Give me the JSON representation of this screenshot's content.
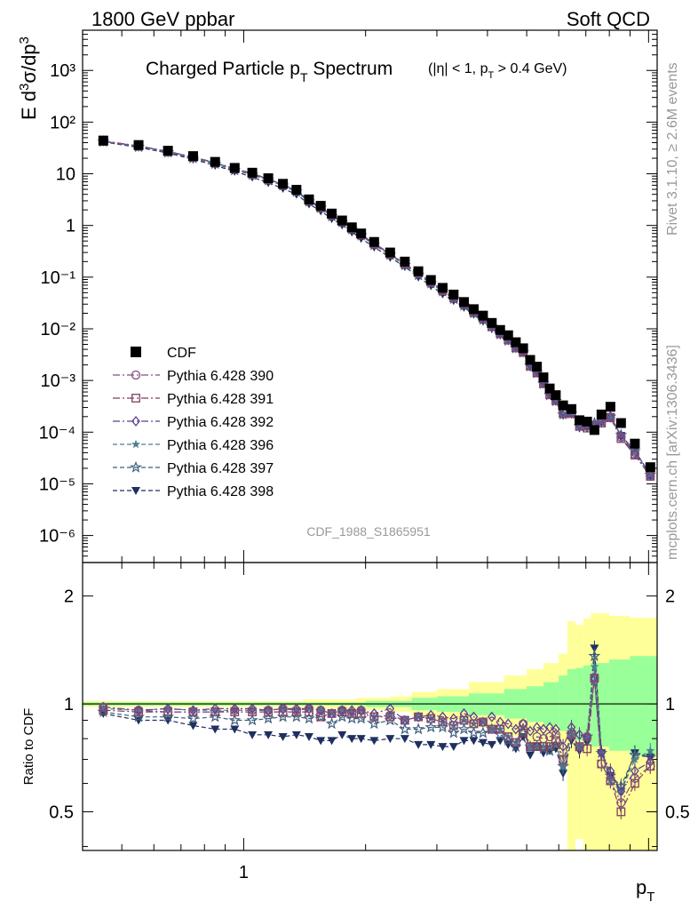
{
  "header": {
    "energy_label": "1800 GeV ppbar",
    "process_label": "Soft QCD",
    "title_main": "Charged Particle p",
    "title_main_sub": "T",
    "title_main_tail": " Spectrum",
    "title_cuts_a": "(|η| < 1, p",
    "title_cuts_sub": "T",
    "title_cuts_b": " > 0.4 GeV)",
    "analysis_id": "CDF_1988_S1865951",
    "side_rivet": "Rivet 3.1.10, ≥ 2.6M events",
    "side_site": "mcplots.cern.ch [arXiv:1306.3436]"
  },
  "colors": {
    "cdf": "#000000",
    "p390": "#7f4f7f",
    "p391": "#7f3f5f",
    "p392": "#5f3f8f",
    "p396": "#4f7f8f",
    "p397": "#3f5f7f",
    "p398": "#1f2f5f",
    "band_inner": "#99ff99",
    "band_outer": "#ffff99"
  },
  "chart_data": [
    {
      "type": "scatter",
      "ylabel": "E d³σ/dp³",
      "yscale": "log",
      "xscale": "log",
      "xlim": [
        0.4,
        10.5
      ],
      "ylim": [
        3e-07,
        6000
      ],
      "y_tick_labels": [
        "10⁻⁶",
        "10⁻⁵",
        "10⁻⁴",
        "10⁻³",
        "10⁻²",
        "10⁻¹",
        "1",
        "10",
        "10²",
        "10³"
      ],
      "x": [
        0.45,
        0.55,
        0.65,
        0.75,
        0.85,
        0.95,
        1.05,
        1.15,
        1.25,
        1.35,
        1.45,
        1.55,
        1.65,
        1.75,
        1.85,
        1.95,
        2.1,
        2.3,
        2.5,
        2.7,
        2.9,
        3.1,
        3.3,
        3.5,
        3.7,
        3.9,
        4.1,
        4.3,
        4.5,
        4.7,
        4.9,
        5.1,
        5.3,
        5.5,
        5.7,
        5.9,
        6.15,
        6.45,
        6.75,
        7.05,
        7.35,
        7.65,
        8.05,
        8.55,
        9.25,
        10.1
      ],
      "legend": [
        "CDF",
        "Pythia 6.428 390",
        "Pythia 6.428 391",
        "Pythia 6.428 392",
        "Pythia 6.428 396",
        "Pythia 6.428 397",
        "Pythia 6.428 398"
      ],
      "series": [
        {
          "name": "CDF",
          "values": [
            44,
            36,
            28,
            22,
            17,
            13,
            10.5,
            8.2,
            6.4,
            4.9,
            3.2,
            2.4,
            1.7,
            1.25,
            0.92,
            0.7,
            0.48,
            0.3,
            0.2,
            0.13,
            0.088,
            0.062,
            0.046,
            0.033,
            0.024,
            0.018,
            0.013,
            0.0095,
            0.0075,
            0.0055,
            0.0042,
            0.0025,
            0.00185,
            0.00115,
            0.0007,
            0.00052,
            0.00033,
            0.00028,
            0.00017,
            0.00016,
            0.00011,
            0.00022,
            0.00031,
            0.00015,
            6e-05,
            2.1e-05
          ]
        },
        {
          "name": "Pythia 6.428 390",
          "values": [
            43.1,
            34.6,
            26.6,
            20.9,
            16.2,
            12.5,
            10.1,
            7.9,
            6.2,
            4.7,
            3.1,
            2.3,
            1.6,
            1.2,
            0.87,
            0.67,
            0.44,
            0.28,
            0.18,
            0.12,
            0.08,
            0.055,
            0.04,
            0.03,
            0.021,
            0.016,
            0.011,
            0.0081,
            0.0061,
            0.0043,
            0.0037,
            0.0019,
            0.0015,
            0.00092,
            0.00057,
            0.00043,
            0.00023,
            0.00023,
            0.00013,
            0.00013,
            0.00013,
            0.00015,
            0.00019,
            8e-05,
            3.7e-05,
            1.4e-05
          ]
        },
        {
          "name": "Pythia 6.428 391",
          "values": [
            42.2,
            34.2,
            26.6,
            20.9,
            16.2,
            12.4,
            10.0,
            7.8,
            6.1,
            4.7,
            3.0,
            2.2,
            1.6,
            1.2,
            0.87,
            0.66,
            0.44,
            0.28,
            0.18,
            0.12,
            0.08,
            0.055,
            0.04,
            0.03,
            0.021,
            0.016,
            0.011,
            0.0081,
            0.0061,
            0.0043,
            0.0035,
            0.0019,
            0.0014,
            0.00087,
            0.00053,
            0.00041,
            0.00023,
            0.00023,
            0.00013,
            0.00012,
            0.00013,
            0.00015,
            0.00019,
            7.5e-05,
            3.6e-05,
            1.4e-05
          ]
        },
        {
          "name": "Pythia 6.428 392",
          "values": [
            43.1,
            34.6,
            27.2,
            21.1,
            16.5,
            12.6,
            10.2,
            7.9,
            6.2,
            4.8,
            3.1,
            2.3,
            1.6,
            1.2,
            0.88,
            0.67,
            0.45,
            0.29,
            0.18,
            0.12,
            0.082,
            0.057,
            0.042,
            0.031,
            0.022,
            0.016,
            0.012,
            0.0085,
            0.0066,
            0.0047,
            0.0037,
            0.0021,
            0.0016,
            0.00098,
            0.0006,
            0.00044,
            0.00025,
            0.00024,
            0.00014,
            0.00013,
            0.00013,
            0.00016,
            0.0002,
            8.5e-05,
            3.9e-05,
            1.45e-05
          ]
        },
        {
          "name": "Pythia 6.428 396",
          "values": [
            42.7,
            34.6,
            27.2,
            21.1,
            16.3,
            12.5,
            10.1,
            7.9,
            6.2,
            4.7,
            3.1,
            2.3,
            1.6,
            1.2,
            0.87,
            0.67,
            0.44,
            0.28,
            0.18,
            0.12,
            0.08,
            0.055,
            0.04,
            0.03,
            0.021,
            0.016,
            0.011,
            0.0081,
            0.0061,
            0.0043,
            0.0036,
            0.0019,
            0.0014,
            0.00087,
            0.00053,
            0.0004,
            0.00022,
            0.00023,
            0.00013,
            0.00013,
            0.00014,
            0.00016,
            0.00019,
            8.5e-05,
            4.2e-05,
            1.55e-05
          ]
        },
        {
          "name": "Pythia 6.428 397",
          "values": [
            41.8,
            33.1,
            25.8,
            20.0,
            15.6,
            11.7,
            9.5,
            7.5,
            5.9,
            4.5,
            2.9,
            2.2,
            1.5,
            1.15,
            0.84,
            0.64,
            0.42,
            0.27,
            0.17,
            0.11,
            0.076,
            0.053,
            0.038,
            0.028,
            0.02,
            0.015,
            0.011,
            0.0078,
            0.0059,
            0.0042,
            0.0035,
            0.0019,
            0.0014,
            0.00086,
            0.00052,
            0.0004,
            0.00022,
            0.00023,
            0.00013,
            0.00013,
            0.00015,
            0.00016,
            0.0002,
            8.8e-05,
            4.3e-05,
            1.5e-05
          ]
        },
        {
          "name": "Pythia 6.428 398",
          "values": [
            41.4,
            32.4,
            25.2,
            19.1,
            14.5,
            11.1,
            8.6,
            6.7,
            5.2,
            4.0,
            2.6,
            1.9,
            1.35,
            1.02,
            0.74,
            0.56,
            0.38,
            0.24,
            0.16,
            0.1,
            0.068,
            0.047,
            0.035,
            0.026,
            0.019,
            0.014,
            0.01,
            0.0075,
            0.0058,
            0.0041,
            0.0034,
            0.0018,
            0.0014,
            0.00084,
            0.00052,
            0.00039,
            0.00021,
            0.00022,
            0.00012,
            0.00012,
            0.00014,
            0.00016,
            0.0002,
            8.6e-05,
            4.4e-05,
            1.5e-05
          ]
        }
      ]
    },
    {
      "type": "line",
      "ylabel": "Ratio to CDF",
      "xlabel": "p",
      "xlabel_sub": "T",
      "xscale": "log",
      "yscale": "log",
      "xlim": [
        0.4,
        10.5
      ],
      "ylim": [
        0.39,
        2.48
      ],
      "y_ticks": [
        0.5,
        1,
        2
      ],
      "y_tick_labels": [
        "0.5",
        "1",
        "2"
      ],
      "x_tick_labels": [
        "1"
      ],
      "x": [
        0.45,
        0.55,
        0.65,
        0.75,
        0.85,
        0.95,
        1.05,
        1.15,
        1.25,
        1.35,
        1.45,
        1.55,
        1.65,
        1.75,
        1.85,
        1.95,
        2.1,
        2.3,
        2.5,
        2.7,
        2.9,
        3.1,
        3.3,
        3.5,
        3.7,
        3.9,
        4.1,
        4.3,
        4.5,
        4.7,
        4.9,
        5.1,
        5.3,
        5.5,
        5.7,
        5.9,
        6.15,
        6.45,
        6.75,
        7.05,
        7.35,
        7.65,
        8.05,
        8.55,
        9.25,
        10.1
      ],
      "band_inner": {
        "bin_edges": [
          0.4,
          2.0,
          2.6,
          3.0,
          3.6,
          4.4,
          5.0,
          5.5,
          6.0,
          6.3,
          6.6,
          6.9,
          7.2,
          8.0,
          9.0,
          10.5
        ],
        "low": [
          0.99,
          0.98,
          0.96,
          0.95,
          0.93,
          0.91,
          0.89,
          0.87,
          0.84,
          0.8,
          0.79,
          0.78,
          0.76,
          0.74,
          0.72
        ],
        "high": [
          1.01,
          1.02,
          1.04,
          1.05,
          1.07,
          1.1,
          1.12,
          1.15,
          1.2,
          1.25,
          1.26,
          1.28,
          1.3,
          1.33,
          1.36
        ]
      },
      "band_outer": {
        "bin_edges": [
          0.4,
          1.4,
          1.9,
          2.3,
          2.6,
          3.0,
          3.6,
          4.4,
          5.0,
          5.5,
          6.0,
          6.3,
          6.6,
          6.9,
          7.2,
          8.0,
          9.0,
          10.5
        ],
        "low": [
          0.98,
          0.97,
          0.96,
          0.95,
          0.92,
          0.9,
          0.86,
          0.81,
          0.78,
          0.74,
          0.68,
          0.39,
          0.42,
          0.39,
          0.39,
          0.39,
          0.39
        ],
        "high": [
          1.02,
          1.03,
          1.04,
          1.05,
          1.08,
          1.1,
          1.15,
          1.2,
          1.25,
          1.3,
          1.38,
          1.7,
          1.66,
          1.73,
          1.79,
          1.76,
          1.74
        ]
      },
      "series": [
        {
          "name": "Pythia 6.428 390",
          "values": [
            0.98,
            0.96,
            0.95,
            0.95,
            0.95,
            0.96,
            0.96,
            0.96,
            0.97,
            0.96,
            0.97,
            0.96,
            0.94,
            0.96,
            0.95,
            0.96,
            0.92,
            0.93,
            0.9,
            0.92,
            0.91,
            0.89,
            0.87,
            0.9,
            0.88,
            0.89,
            0.85,
            0.85,
            0.81,
            0.78,
            0.88,
            0.76,
            0.81,
            0.8,
            0.81,
            0.82,
            0.7,
            0.82,
            0.76,
            0.81,
            1.18,
            0.68,
            0.61,
            0.53,
            0.62,
            0.67
          ]
        },
        {
          "name": "Pythia 6.428 391",
          "values": [
            0.96,
            0.95,
            0.95,
            0.95,
            0.95,
            0.95,
            0.95,
            0.95,
            0.95,
            0.95,
            0.95,
            0.92,
            0.94,
            0.95,
            0.94,
            0.94,
            0.92,
            0.92,
            0.9,
            0.92,
            0.91,
            0.89,
            0.87,
            0.9,
            0.88,
            0.89,
            0.85,
            0.85,
            0.81,
            0.78,
            0.83,
            0.76,
            0.76,
            0.76,
            0.76,
            0.79,
            0.7,
            0.82,
            0.76,
            0.75,
            1.18,
            0.68,
            0.61,
            0.5,
            0.6,
            0.67
          ]
        },
        {
          "name": "Pythia 6.428 392",
          "values": [
            0.98,
            0.96,
            0.97,
            0.96,
            0.97,
            0.97,
            0.97,
            0.96,
            0.97,
            0.97,
            0.97,
            0.96,
            0.94,
            0.96,
            0.96,
            0.96,
            0.94,
            0.97,
            0.9,
            0.92,
            0.93,
            0.92,
            0.91,
            0.94,
            0.92,
            0.89,
            0.92,
            0.89,
            0.88,
            0.85,
            0.88,
            0.84,
            0.86,
            0.85,
            0.86,
            0.85,
            0.76,
            0.86,
            0.82,
            0.81,
            1.18,
            0.73,
            0.65,
            0.57,
            0.65,
            0.69
          ]
        },
        {
          "name": "Pythia 6.428 396",
          "values": [
            0.97,
            0.96,
            0.97,
            0.96,
            0.96,
            0.96,
            0.96,
            0.96,
            0.97,
            0.96,
            0.97,
            0.96,
            0.94,
            0.96,
            0.95,
            0.96,
            0.92,
            0.93,
            0.9,
            0.92,
            0.91,
            0.89,
            0.87,
            0.9,
            0.88,
            0.89,
            0.85,
            0.85,
            0.81,
            0.78,
            0.86,
            0.76,
            0.76,
            0.76,
            0.76,
            0.77,
            0.67,
            0.82,
            0.76,
            0.81,
            1.27,
            0.73,
            0.61,
            0.57,
            0.7,
            0.74
          ]
        },
        {
          "name": "Pythia 6.428 397",
          "values": [
            0.95,
            0.92,
            0.92,
            0.91,
            0.92,
            0.9,
            0.9,
            0.91,
            0.92,
            0.92,
            0.91,
            0.92,
            0.88,
            0.92,
            0.91,
            0.91,
            0.88,
            0.9,
            0.85,
            0.85,
            0.86,
            0.86,
            0.83,
            0.85,
            0.83,
            0.83,
            0.85,
            0.82,
            0.79,
            0.76,
            0.83,
            0.76,
            0.76,
            0.75,
            0.74,
            0.77,
            0.67,
            0.82,
            0.76,
            0.81,
            1.36,
            0.73,
            0.63,
            0.59,
            0.72,
            0.71
          ]
        },
        {
          "name": "Pythia 6.428 398",
          "values": [
            0.94,
            0.9,
            0.9,
            0.87,
            0.85,
            0.85,
            0.82,
            0.82,
            0.81,
            0.82,
            0.81,
            0.79,
            0.79,
            0.82,
            0.8,
            0.8,
            0.79,
            0.8,
            0.8,
            0.77,
            0.77,
            0.76,
            0.76,
            0.79,
            0.79,
            0.78,
            0.77,
            0.79,
            0.77,
            0.75,
            0.81,
            0.72,
            0.76,
            0.73,
            0.74,
            0.75,
            0.64,
            0.79,
            0.74,
            0.78,
            1.43,
            0.73,
            0.63,
            0.57,
            0.73,
            0.71
          ]
        }
      ]
    }
  ]
}
